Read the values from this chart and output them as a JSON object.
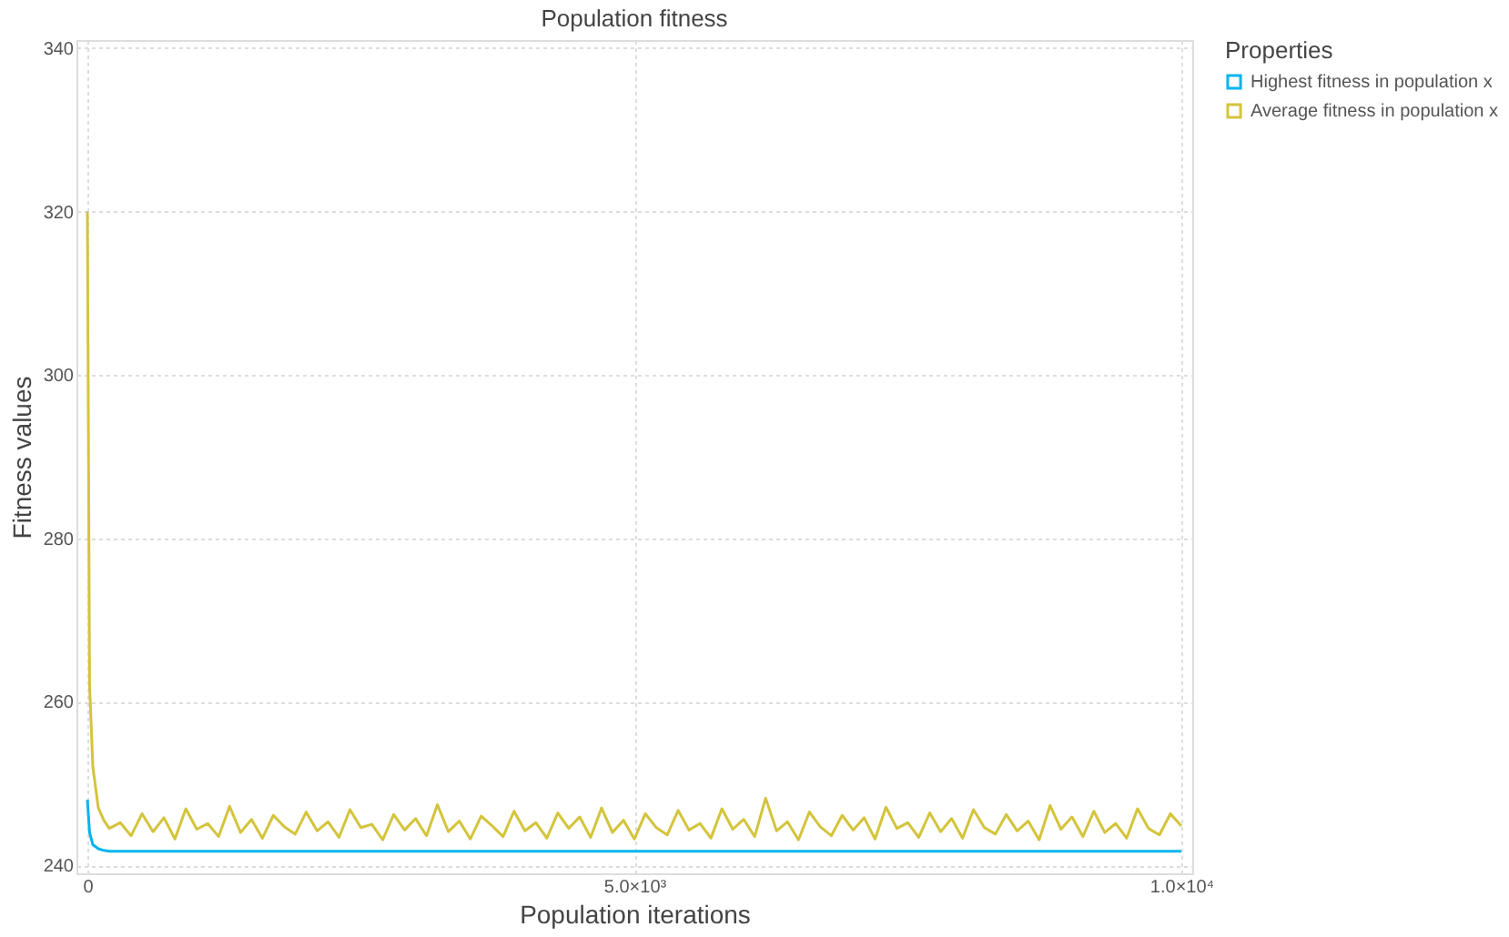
{
  "chart_data": {
    "type": "line",
    "title": "Population fitness",
    "xlabel": "Population iterations",
    "ylabel": "Fitness values",
    "legend_title": "Properties",
    "xlim": [
      -100,
      10100
    ],
    "xticks": [
      0,
      {
        "value": 5000,
        "label": "5.0×10³"
      },
      {
        "value": 10000,
        "label": "1.0×10⁴"
      }
    ],
    "ylim": [
      239,
      341
    ],
    "yticks": [
      240,
      260,
      280,
      300,
      320,
      340
    ],
    "grid": true,
    "legend": "right",
    "line_style": "solid",
    "marker": "none",
    "series": [
      {
        "name": "Highest fitness in population x",
        "color": "#00b4f0",
        "x": [
          0,
          20,
          50,
          100,
          150,
          200,
          300,
          10000
        ],
        "values": [
          248,
          244,
          242.5,
          242,
          241.8,
          241.7,
          241.7,
          241.7
        ]
      },
      {
        "name": "Average fitness in population x",
        "color": "#d4c43c",
        "x": [
          0,
          20,
          50,
          100,
          150,
          200,
          300,
          400,
          500,
          600,
          700,
          800,
          900,
          1000,
          1100,
          1200,
          1300,
          1400,
          1500,
          1600,
          1700,
          1800,
          1900,
          2000,
          2100,
          2200,
          2300,
          2400,
          2500,
          2600,
          2700,
          2800,
          2900,
          3000,
          3100,
          3200,
          3300,
          3400,
          3500,
          3600,
          3700,
          3800,
          3900,
          4000,
          4100,
          4200,
          4300,
          4400,
          4500,
          4600,
          4700,
          4800,
          4900,
          5000,
          5100,
          5200,
          5300,
          5400,
          5500,
          5600,
          5700,
          5800,
          5900,
          6000,
          6100,
          6200,
          6300,
          6400,
          6500,
          6600,
          6700,
          6800,
          6900,
          7000,
          7100,
          7200,
          7300,
          7400,
          7500,
          7600,
          7700,
          7800,
          7900,
          8000,
          8100,
          8200,
          8300,
          8400,
          8500,
          8600,
          8700,
          8800,
          8900,
          9000,
          9100,
          9200,
          9300,
          9400,
          9500,
          9600,
          9700,
          9800,
          9900,
          10000
        ],
        "values": [
          320,
          262,
          252,
          247,
          245.5,
          244.5,
          245.2,
          243.6,
          246.3,
          244.1,
          245.8,
          243.2,
          246.9,
          244.4,
          245.1,
          243.5,
          247.2,
          244.0,
          245.6,
          243.3,
          246.1,
          244.7,
          243.8,
          246.5,
          244.2,
          245.3,
          243.4,
          246.8,
          244.6,
          245.0,
          243.1,
          246.2,
          244.3,
          245.7,
          243.6,
          247.4,
          244.1,
          245.4,
          243.2,
          246.0,
          244.8,
          243.5,
          246.6,
          244.2,
          245.2,
          243.3,
          246.4,
          244.5,
          245.9,
          243.4,
          247.0,
          244.0,
          245.5,
          243.2,
          246.3,
          244.6,
          243.7,
          246.7,
          244.3,
          245.1,
          243.3,
          246.9,
          244.4,
          245.6,
          243.5,
          248.2,
          244.2,
          245.3,
          243.1,
          246.5,
          244.7,
          243.6,
          246.1,
          244.3,
          245.8,
          243.2,
          247.1,
          244.5,
          245.2,
          243.4,
          246.4,
          244.1,
          245.7,
          243.3,
          246.8,
          244.6,
          243.8,
          246.2,
          244.2,
          245.4,
          243.1,
          247.3,
          244.4,
          245.9,
          243.5,
          246.6,
          244.0,
          245.1,
          243.3,
          246.9,
          244.5,
          243.7,
          246.3,
          244.8
        ]
      }
    ]
  }
}
